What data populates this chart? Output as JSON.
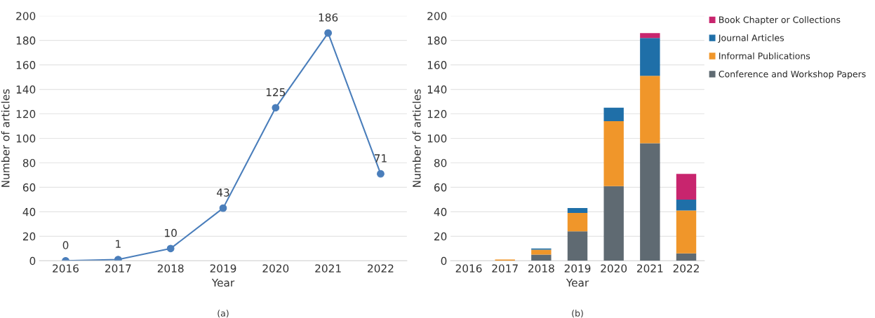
{
  "chart_data": [
    {
      "type": "line",
      "xlabel": "Year",
      "ylabel": "Number of articles",
      "categories": [
        "2016",
        "2017",
        "2018",
        "2019",
        "2020",
        "2021",
        "2022"
      ],
      "series": [
        {
          "color": "#4a7ebb",
          "values": [
            0,
            1,
            10,
            43,
            125,
            186,
            71
          ]
        }
      ],
      "ylim": [
        0,
        200
      ],
      "yticks": [
        0,
        20,
        40,
        60,
        80,
        100,
        120,
        140,
        160,
        180,
        200
      ],
      "grid": "y",
      "marker": "circle",
      "line_style": "solid",
      "data_labels": true,
      "legend": false,
      "annotations": [
        "(a)"
      ]
    },
    {
      "type": "bar",
      "stacked": true,
      "xlabel": "Year",
      "ylabel": "Number of articles",
      "categories": [
        "2016",
        "2017",
        "2018",
        "2019",
        "2020",
        "2021",
        "2022"
      ],
      "series": [
        {
          "name": "Conference and Workshop Papers",
          "color": "#5f6a72",
          "values": [
            null,
            null,
            5,
            24,
            61,
            96,
            6
          ]
        },
        {
          "name": "Informal Publications",
          "color": "#f0962a",
          "values": [
            null,
            1,
            4,
            15,
            53,
            55,
            35
          ]
        },
        {
          "name": "Journal Articles",
          "color": "#1f6fa8",
          "values": [
            null,
            null,
            1,
            4,
            11,
            31,
            9
          ]
        },
        {
          "name": "Book Chapter or Collections",
          "color": "#c8256e",
          "values": [
            null,
            null,
            null,
            null,
            null,
            4,
            21
          ]
        }
      ],
      "ylim": [
        0,
        200
      ],
      "yticks": [
        0,
        20,
        40,
        60,
        80,
        100,
        120,
        140,
        160,
        180,
        200
      ],
      "grid": "y",
      "legend": "top right",
      "annotations": [
        "(b)"
      ]
    }
  ]
}
